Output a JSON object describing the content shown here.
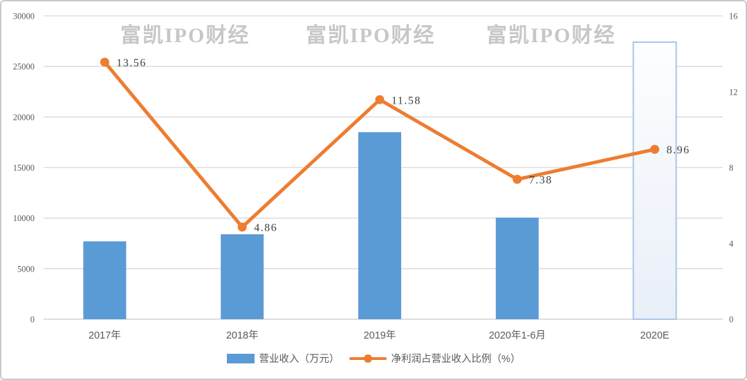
{
  "watermark": {
    "text": "富凯IPO财经",
    "color": "#c7c7c7"
  },
  "legend": {
    "items": [
      {
        "label": "营业收入（万元）",
        "type": "bar",
        "color": "#5b9bd5"
      },
      {
        "label": "净利润占营业收入比例（%）",
        "type": "line",
        "color": "#ed7d31"
      }
    ],
    "position": "bottom-center"
  },
  "colors": {
    "bar": "#5b9bd5",
    "line": "#ed7d31",
    "grid": "#d9d9d9",
    "axis_line": "#c9c9c9",
    "tick_text": "#595959",
    "data_label_text": "#404040",
    "forecast_bar_border": "#a9c5e8",
    "forecast_bar_fill_top": "#fdfeff",
    "forecast_bar_fill_bottom": "#e9eff8",
    "frame_border": "#c9c9c9"
  },
  "chart_data": {
    "type": "bar",
    "subtype": "combo-bar-line-dual-axis",
    "title": "",
    "categories": [
      "2017年",
      "2018年",
      "2019年",
      "2020年1-6月",
      "2020E"
    ],
    "series": [
      {
        "name": "营业收入（万元）",
        "type": "bar",
        "axis": "left",
        "color": "#5b9bd5",
        "values": [
          7700,
          8400,
          18500,
          10050,
          27400
        ],
        "forecast_last_bar": true
      },
      {
        "name": "净利润占营业收入比例（%）",
        "type": "line",
        "axis": "right",
        "color": "#ed7d31",
        "values": [
          13.56,
          4.86,
          11.58,
          7.38,
          8.96
        ],
        "point_labels": [
          "13.56",
          "4.86",
          "11.58",
          "7.38",
          "8.96"
        ]
      }
    ],
    "left_axis": {
      "min": 0,
      "max": 30000,
      "step": 5000,
      "ticks": [
        "30000",
        "25000",
        "20000",
        "15000",
        "10000",
        "5000",
        "0"
      ]
    },
    "right_axis": {
      "min": 0,
      "max": 16,
      "step": 4,
      "ticks": [
        "16",
        "12",
        "8",
        "4",
        "0"
      ]
    },
    "grid": true,
    "legend_position": "bottom"
  }
}
